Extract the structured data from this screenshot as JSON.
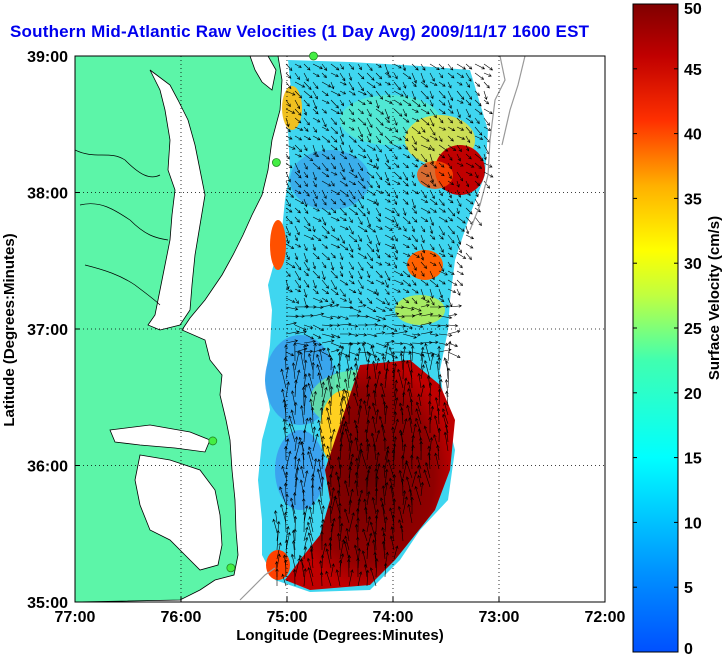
{
  "title": "Southern Mid-Atlantic Raw Velocities (1 Day Avg) 2009/11/17 1600 EST",
  "map": {
    "xlabel": "Longitude (Degrees:Minutes)",
    "ylabel": "Latitude (Degrees:Minutes)",
    "lon_range": [
      -77,
      -72
    ],
    "lat_range": [
      35,
      39
    ],
    "lon_ticks": [
      {
        "value": -77,
        "label": "77:00"
      },
      {
        "value": -76,
        "label": "76:00"
      },
      {
        "value": -75,
        "label": "75:00"
      },
      {
        "value": -74,
        "label": "74:00"
      },
      {
        "value": -73,
        "label": "73:00"
      },
      {
        "value": -72,
        "label": "72:00"
      }
    ],
    "lat_ticks": [
      {
        "value": 35,
        "label": "35:00"
      },
      {
        "value": 36,
        "label": "36:00"
      },
      {
        "value": 37,
        "label": "37:00"
      },
      {
        "value": 38,
        "label": "38:00"
      },
      {
        "value": 39,
        "label": "39:00"
      }
    ],
    "grid": "dotted",
    "land_color": "#5cf5a8",
    "bathymetry_color": "#999999",
    "station_color": "#44ee44"
  },
  "colorbar": {
    "label": "Surface Velocity (cm/s)",
    "range": [
      0,
      50
    ],
    "ticks": [
      {
        "value": 0,
        "label": "0"
      },
      {
        "value": 5,
        "label": "5"
      },
      {
        "value": 10,
        "label": "10"
      },
      {
        "value": 15,
        "label": "15"
      },
      {
        "value": 20,
        "label": "20"
      },
      {
        "value": 25,
        "label": "25"
      },
      {
        "value": 30,
        "label": "30"
      },
      {
        "value": 35,
        "label": "35"
      },
      {
        "value": 40,
        "label": "40"
      },
      {
        "value": 45,
        "label": "45"
      },
      {
        "value": 50,
        "label": "50"
      }
    ],
    "colormap": "jet"
  },
  "stations": [
    {
      "lon": -74.75,
      "lat": 39.0
    },
    {
      "lon": -75.1,
      "lat": 38.22
    },
    {
      "lon": -75.7,
      "lat": 36.18
    },
    {
      "lon": -75.53,
      "lat": 35.25
    }
  ]
}
